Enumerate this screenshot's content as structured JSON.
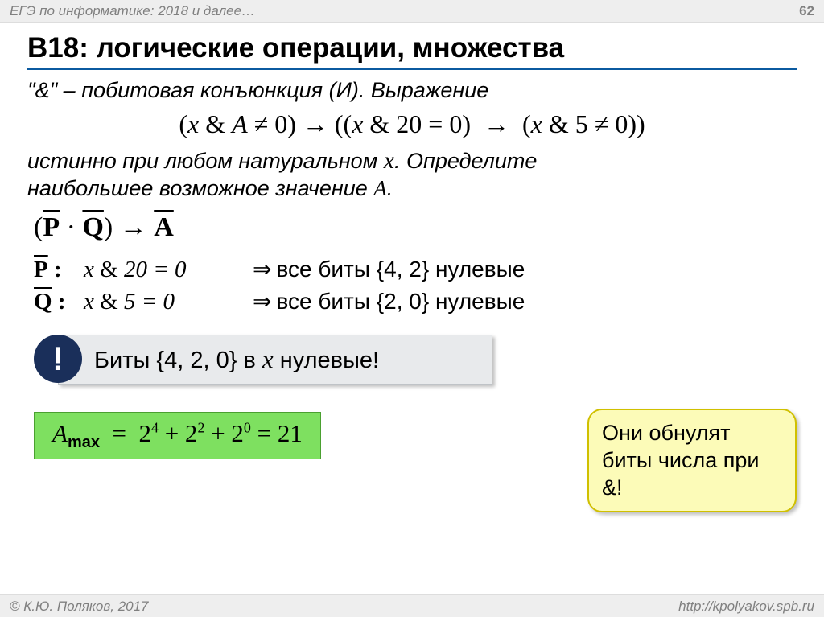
{
  "header": {
    "left": "ЕГЭ по информатике: 2018 и далее…",
    "page": "62"
  },
  "title": "B18: логические операции, множества",
  "problem": {
    "line1_prefix": "\"&\" – побитовая конъюнкция (И). Выражение",
    "formula": "(x & A ≠ 0) → ((x & 20 = 0)  →  (x & 5 ≠ 0))",
    "line2a": "истинно при любом натуральном ",
    "line2b": ". Определите",
    "line3a": "наибольшее возможное значение ",
    "line3b": "."
  },
  "logic": {
    "expr_text": "(P̄ · Q̄) → Ā",
    "p_label": "P",
    "q_label": "Q",
    "p_expr": "x & 20 = 0",
    "q_expr": "x & 5 = 0",
    "p_meaning": "все биты {4, 2} нулевые",
    "q_meaning": "все биты {2, 0} нулевые",
    "arrow": "⇒"
  },
  "note": {
    "excl": "!",
    "text_a": "Биты {4, 2, 0} в ",
    "text_b": " нулевые!"
  },
  "callout": "Они обнулят биты числа при &!",
  "answer": {
    "lhs": "A",
    "sub": "max",
    "rhs": "  =  2⁴ + 2² + 2⁰ = 21"
  },
  "footer": {
    "left": "© К.Ю. Поляков, 2017",
    "right": "http://kpolyakov.spb.ru"
  },
  "colors": {
    "header_bg": "#eeeeee",
    "rule": "#0b5aa0",
    "note_bg": "#e8eaec",
    "excl_bg": "#1a2f5a",
    "callout_bg": "#fcfbb8",
    "callout_border": "#d0c000",
    "answer_bg": "#7ee060"
  }
}
